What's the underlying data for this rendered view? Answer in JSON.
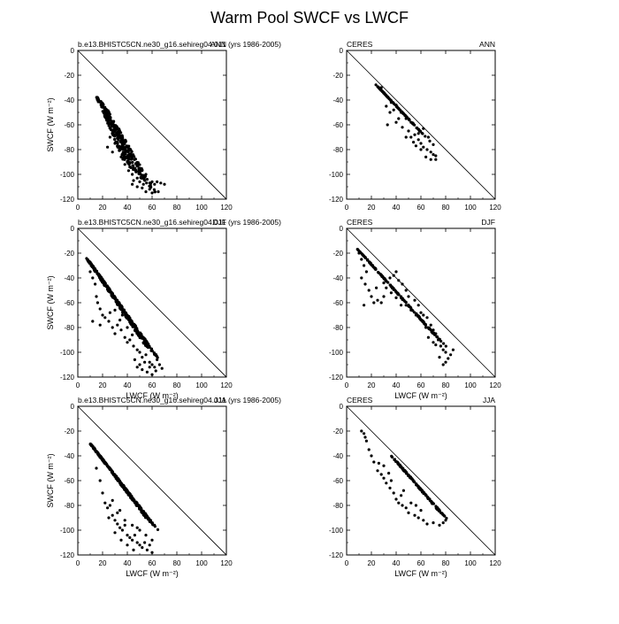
{
  "figure": {
    "title": "Warm Pool SWCF vs LWCF"
  },
  "chart_data": [
    {
      "type": "scatter",
      "name": "model-ann",
      "left_label": "b.e13.BHISTC5CN.ne30_g16.sehireg04.011 (yrs 1986-2005)",
      "right_label": "ANN",
      "xlabel": "",
      "ylabel": "SWCF (W m⁻²)",
      "xlim": [
        0,
        120
      ],
      "ylim": [
        -120,
        0
      ],
      "x_ticks": [
        "0",
        "20",
        "40",
        "60",
        "80",
        "100",
        "120"
      ],
      "y_ticks": [
        "0",
        "-20",
        "-40",
        "-60",
        "-80",
        "-100",
        "-120"
      ],
      "cloud": {
        "x0": 18,
        "x1": 50,
        "y0": -40,
        "y1": -102,
        "w_top": 5,
        "w_bot": 20,
        "n": 300,
        "seed": 11
      },
      "points": [
        [
          30,
          -75
        ],
        [
          34,
          -78
        ],
        [
          26,
          -70
        ],
        [
          38,
          -82
        ],
        [
          40,
          -90
        ],
        [
          42,
          -94
        ],
        [
          45,
          -95
        ],
        [
          47,
          -98
        ],
        [
          44,
          -100
        ],
        [
          50,
          -95
        ],
        [
          48,
          -103
        ],
        [
          45,
          -105
        ],
        [
          50,
          -106
        ],
        [
          53,
          -108
        ],
        [
          56,
          -104
        ],
        [
          60,
          -106
        ],
        [
          62,
          -108
        ],
        [
          64,
          -106
        ],
        [
          67,
          -107
        ],
        [
          70,
          -108
        ],
        [
          58,
          -112
        ],
        [
          55,
          -114
        ],
        [
          60,
          -115
        ],
        [
          65,
          -114
        ],
        [
          48,
          -110
        ],
        [
          52,
          -111
        ],
        [
          44,
          -108
        ],
        [
          24,
          -78
        ],
        [
          28,
          -82
        ],
        [
          35,
          -86
        ],
        [
          38,
          -92
        ],
        [
          41,
          -97
        ],
        [
          55,
          -100
        ]
      ],
      "reference_line": [
        [
          0,
          0
        ],
        [
          120,
          -120
        ]
      ]
    },
    {
      "type": "scatter",
      "name": "ceres-ann",
      "left_label": "CERES",
      "right_label": "ANN",
      "xlabel": "",
      "ylabel": "",
      "xlim": [
        0,
        120
      ],
      "ylim": [
        -120,
        0
      ],
      "x_ticks": [
        "0",
        "20",
        "40",
        "60",
        "80",
        "100",
        "120"
      ],
      "y_ticks": [
        "0",
        "-20",
        "-40",
        "-60",
        "-80",
        "-100",
        "-120"
      ],
      "cloud": {
        "x0": 25,
        "x1": 62,
        "y0": -29,
        "y1": -68,
        "w_top": 4,
        "w_bot": 9,
        "n": 110,
        "seed": 23
      },
      "points": [
        [
          30,
          -34
        ],
        [
          32,
          -45
        ],
        [
          28,
          -30
        ],
        [
          35,
          -50
        ],
        [
          38,
          -48
        ],
        [
          40,
          -58
        ],
        [
          33,
          -60
        ],
        [
          45,
          -62
        ],
        [
          48,
          -55
        ],
        [
          50,
          -65
        ],
        [
          52,
          -70
        ],
        [
          55,
          -68
        ],
        [
          58,
          -72
        ],
        [
          60,
          -75
        ],
        [
          62,
          -78
        ],
        [
          65,
          -80
        ],
        [
          68,
          -82
        ],
        [
          70,
          -84
        ],
        [
          72,
          -85
        ],
        [
          70,
          -76
        ],
        [
          66,
          -70
        ],
        [
          60,
          -80
        ],
        [
          56,
          -77
        ],
        [
          54,
          -74
        ],
        [
          64,
          -86
        ],
        [
          68,
          -88
        ],
        [
          72,
          -88
        ],
        [
          58,
          -67
        ],
        [
          62,
          -63
        ],
        [
          48,
          -70
        ],
        [
          42,
          -55
        ],
        [
          36,
          -42
        ],
        [
          40,
          -44
        ],
        [
          44,
          -50
        ],
        [
          52,
          -58
        ]
      ],
      "reference_line": [
        [
          0,
          0
        ],
        [
          120,
          -120
        ]
      ]
    },
    {
      "type": "scatter",
      "name": "model-djf",
      "left_label": "b.e13.BHISTC5CN.ne30_g16.sehireg04.011 (yrs 1986-2005)",
      "right_label": "DJF",
      "xlabel": "LWCF (W m⁻²)",
      "ylabel": "SWCF (W m⁻²)",
      "xlim": [
        0,
        120
      ],
      "ylim": [
        -120,
        0
      ],
      "x_ticks": [
        "0",
        "20",
        "40",
        "60",
        "80",
        "100",
        "120"
      ],
      "y_ticks": [
        "0",
        "-20",
        "-40",
        "-60",
        "-80",
        "-100",
        "-120"
      ],
      "cloud": {
        "x0": 8,
        "x1": 60,
        "y0": -25,
        "y1": -100,
        "w_top": 3,
        "w_bot": 9,
        "n": 380,
        "seed": 37
      },
      "points": [
        [
          10,
          -35
        ],
        [
          12,
          -40
        ],
        [
          14,
          -45
        ],
        [
          15,
          -55
        ],
        [
          16,
          -60
        ],
        [
          18,
          -65
        ],
        [
          20,
          -70
        ],
        [
          12,
          -75
        ],
        [
          18,
          -78
        ],
        [
          22,
          -72
        ],
        [
          25,
          -75
        ],
        [
          28,
          -80
        ],
        [
          30,
          -85
        ],
        [
          32,
          -78
        ],
        [
          35,
          -82
        ],
        [
          38,
          -88
        ],
        [
          40,
          -92
        ],
        [
          42,
          -90
        ],
        [
          45,
          -95
        ],
        [
          48,
          -98
        ],
        [
          50,
          -100
        ],
        [
          52,
          -104
        ],
        [
          55,
          -102
        ],
        [
          58,
          -108
        ],
        [
          60,
          -110
        ],
        [
          62,
          -112
        ],
        [
          64,
          -106
        ],
        [
          66,
          -110
        ],
        [
          68,
          -113
        ],
        [
          50,
          -110
        ],
        [
          48,
          -112
        ],
        [
          52,
          -114
        ],
        [
          56,
          -116
        ],
        [
          60,
          -118
        ],
        [
          63,
          -115
        ],
        [
          46,
          -106
        ],
        [
          54,
          -108
        ],
        [
          58,
          -112
        ],
        [
          26,
          -68
        ],
        [
          34,
          -74
        ],
        [
          40,
          -80
        ],
        [
          44,
          -86
        ],
        [
          36,
          -70
        ],
        [
          30,
          -66
        ]
      ],
      "reference_line": [
        [
          0,
          0
        ],
        [
          120,
          -120
        ]
      ]
    },
    {
      "type": "scatter",
      "name": "ceres-djf",
      "left_label": "CERES",
      "right_label": "DJF",
      "xlabel": "LWCF (W m⁻²)",
      "ylabel": "",
      "xlim": [
        0,
        120
      ],
      "ylim": [
        -120,
        0
      ],
      "x_ticks": [
        "0",
        "20",
        "40",
        "60",
        "80",
        "100",
        "120"
      ],
      "y_ticks": [
        "0",
        "-20",
        "-40",
        "-60",
        "-80",
        "-100",
        "-120"
      ],
      "cloud": {
        "x0": 10,
        "x1": 75,
        "y0": -18,
        "y1": -90,
        "w_top": 5,
        "w_bot": 10,
        "n": 150,
        "seed": 41
      },
      "points": [
        [
          10,
          -20
        ],
        [
          12,
          -25
        ],
        [
          14,
          -30
        ],
        [
          16,
          -35
        ],
        [
          12,
          -40
        ],
        [
          15,
          -45
        ],
        [
          18,
          -50
        ],
        [
          20,
          -55
        ],
        [
          22,
          -60
        ],
        [
          14,
          -62
        ],
        [
          25,
          -58
        ],
        [
          28,
          -60
        ],
        [
          30,
          -55
        ],
        [
          32,
          -48
        ],
        [
          35,
          -40
        ],
        [
          38,
          -38
        ],
        [
          40,
          -35
        ],
        [
          42,
          -42
        ],
        [
          45,
          -45
        ],
        [
          48,
          -50
        ],
        [
          50,
          -55
        ],
        [
          55,
          -58
        ],
        [
          58,
          -62
        ],
        [
          60,
          -68
        ],
        [
          62,
          -70
        ],
        [
          65,
          -72
        ],
        [
          68,
          -78
        ],
        [
          70,
          -82
        ],
        [
          72,
          -85
        ],
        [
          74,
          -90
        ],
        [
          76,
          -95
        ],
        [
          78,
          -98
        ],
        [
          80,
          -100
        ],
        [
          82,
          -105
        ],
        [
          84,
          -102
        ],
        [
          86,
          -98
        ],
        [
          80,
          -108
        ],
        [
          78,
          -110
        ],
        [
          75,
          -104
        ],
        [
          66,
          -88
        ],
        [
          70,
          -92
        ],
        [
          24,
          -48
        ],
        [
          30,
          -44
        ],
        [
          36,
          -52
        ],
        [
          44,
          -62
        ],
        [
          52,
          -66
        ],
        [
          40,
          -56
        ],
        [
          48,
          -62
        ],
        [
          56,
          -70
        ],
        [
          64,
          -80
        ],
        [
          72,
          -94
        ]
      ],
      "reference_line": [
        [
          0,
          0
        ],
        [
          120,
          -120
        ]
      ]
    },
    {
      "type": "scatter",
      "name": "model-jja",
      "left_label": "b.e13.BHISTC5CN.ne30_g16.sehireg04.011 (yrs 1986-2005)",
      "right_label": "JJA",
      "xlabel": "LWCF (W m⁻²)",
      "ylabel": "SWCF (W m⁻²)",
      "xlim": [
        0,
        120
      ],
      "ylim": [
        -120,
        0
      ],
      "x_ticks": [
        "0",
        "20",
        "40",
        "60",
        "80",
        "100",
        "120"
      ],
      "y_ticks": [
        "0",
        "-20",
        "-40",
        "-60",
        "-80",
        "-100",
        "-120"
      ],
      "cloud": {
        "x0": 10,
        "x1": 60,
        "y0": -30,
        "y1": -95,
        "w_top": 3,
        "w_bot": 8,
        "n": 300,
        "seed": 53
      },
      "points": [
        [
          15,
          -50
        ],
        [
          18,
          -60
        ],
        [
          20,
          -70
        ],
        [
          22,
          -78
        ],
        [
          24,
          -82
        ],
        [
          26,
          -80
        ],
        [
          28,
          -88
        ],
        [
          30,
          -92
        ],
        [
          32,
          -95
        ],
        [
          34,
          -98
        ],
        [
          36,
          -100
        ],
        [
          38,
          -96
        ],
        [
          40,
          -104
        ],
        [
          42,
          -106
        ],
        [
          44,
          -108
        ],
        [
          46,
          -104
        ],
        [
          48,
          -110
        ],
        [
          50,
          -112
        ],
        [
          52,
          -114
        ],
        [
          54,
          -110
        ],
        [
          56,
          -116
        ],
        [
          58,
          -112
        ],
        [
          60,
          -118
        ],
        [
          45,
          -116
        ],
        [
          40,
          -112
        ],
        [
          35,
          -108
        ],
        [
          30,
          -102
        ],
        [
          25,
          -90
        ],
        [
          32,
          -86
        ],
        [
          38,
          -92
        ],
        [
          44,
          -96
        ],
        [
          50,
          -100
        ],
        [
          55,
          -104
        ],
        [
          60,
          -108
        ],
        [
          48,
          -98
        ],
        [
          28,
          -76
        ],
        [
          34,
          -84
        ]
      ],
      "reference_line": [
        [
          0,
          0
        ],
        [
          120,
          -120
        ]
      ]
    },
    {
      "type": "scatter",
      "name": "ceres-jja",
      "left_label": "CERES",
      "right_label": "JJA",
      "xlabel": "LWCF (W m⁻²)",
      "ylabel": "",
      "xlim": [
        0,
        120
      ],
      "ylim": [
        -120,
        0
      ],
      "x_ticks": [
        "0",
        "20",
        "40",
        "60",
        "80",
        "100",
        "120"
      ],
      "y_ticks": [
        "0",
        "-20",
        "-40",
        "-60",
        "-80",
        "-100",
        "-120"
      ],
      "cloud": {
        "x0": 38,
        "x1": 78,
        "y0": -42,
        "y1": -88,
        "w_top": 5,
        "w_bot": 8,
        "n": 140,
        "seed": 67
      },
      "points": [
        [
          12,
          -20
        ],
        [
          14,
          -22
        ],
        [
          15,
          -25
        ],
        [
          16,
          -28
        ],
        [
          18,
          -35
        ],
        [
          20,
          -40
        ],
        [
          22,
          -45
        ],
        [
          25,
          -52
        ],
        [
          28,
          -55
        ],
        [
          30,
          -58
        ],
        [
          32,
          -62
        ],
        [
          35,
          -66
        ],
        [
          38,
          -70
        ],
        [
          40,
          -75
        ],
        [
          42,
          -78
        ],
        [
          45,
          -80
        ],
        [
          48,
          -82
        ],
        [
          50,
          -86
        ],
        [
          55,
          -88
        ],
        [
          58,
          -90
        ],
        [
          62,
          -92
        ],
        [
          65,
          -95
        ],
        [
          70,
          -94
        ],
        [
          75,
          -96
        ],
        [
          78,
          -94
        ],
        [
          80,
          -92
        ],
        [
          30,
          -48
        ],
        [
          26,
          -46
        ],
        [
          34,
          -54
        ],
        [
          36,
          -60
        ],
        [
          44,
          -72
        ],
        [
          46,
          -68
        ],
        [
          52,
          -78
        ],
        [
          56,
          -80
        ],
        [
          60,
          -84
        ]
      ],
      "reference_line": [
        [
          0,
          0
        ],
        [
          120,
          -120
        ]
      ]
    }
  ]
}
